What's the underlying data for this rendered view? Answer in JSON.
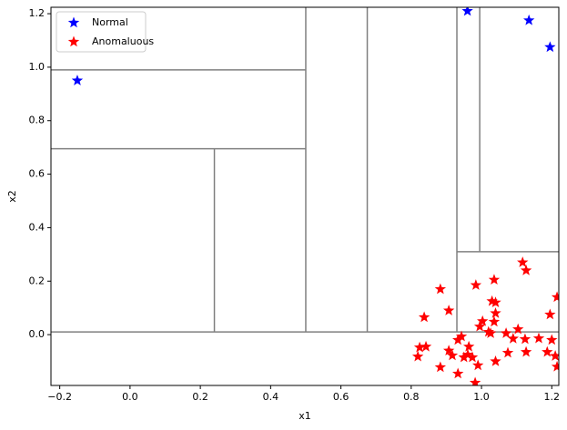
{
  "chart_data": {
    "type": "scatter",
    "xlabel": "x1",
    "ylabel": "x2",
    "xlim": [
      -0.225,
      1.22
    ],
    "ylim": [
      -0.19,
      1.224
    ],
    "xticks": [
      {
        "value": -0.2,
        "label": "−0.2"
      },
      {
        "value": 0,
        "label": "0.0"
      },
      0.2,
      0.4,
      0.6,
      0.8,
      {
        "value": 1,
        "label": "1.0"
      },
      1.2
    ],
    "yticks": [
      {
        "value": 0,
        "label": "0.0"
      },
      0.2,
      0.4,
      0.6,
      0.8,
      {
        "value": 1,
        "label": "1.0"
      },
      1.2
    ],
    "legend": "upper left",
    "partition_color": "#808080",
    "partitions": [
      {
        "x": [
          -0.225,
          1.22
        ],
        "y": [
          0.01,
          0.01
        ]
      },
      {
        "x": [
          0.5,
          0.5
        ],
        "y": [
          0.01,
          1.224
        ]
      },
      {
        "x": [
          -0.225,
          0.5
        ],
        "y": [
          0.99,
          0.99
        ]
      },
      {
        "x": [
          -0.225,
          0.5
        ],
        "y": [
          0.695,
          0.695
        ]
      },
      {
        "x": [
          0.24,
          0.24
        ],
        "y": [
          0.01,
          0.695
        ]
      },
      {
        "x": [
          0.675,
          0.675
        ],
        "y": [
          0.01,
          1.224
        ]
      },
      {
        "x": [
          0.93,
          0.93
        ],
        "y": [
          0.01,
          1.224
        ]
      },
      {
        "x": [
          0.93,
          1.22
        ],
        "y": [
          0.31,
          0.31
        ]
      },
      {
        "x": [
          0.995,
          0.995
        ],
        "y": [
          0.31,
          1.224
        ]
      }
    ],
    "series": [
      {
        "name": "Normal",
        "color": "#0000ff",
        "x": [
          -0.15,
          0.96,
          1.135,
          1.195
        ],
        "values": [
          0.95,
          1.21,
          1.175,
          1.075
        ]
      },
      {
        "name": "Anomaluous",
        "color": "#ff0000",
        "x": [
          1.215,
          1.195,
          1.117,
          1.127,
          1.036,
          1.03,
          1.04,
          1.04,
          1.036,
          1.003,
          0.995,
          0.984,
          0.883,
          0.907,
          0.837,
          1.026,
          1.02,
          1.07,
          1.104,
          1.09,
          1.124,
          1.163,
          1.2,
          1.075,
          1.127,
          1.187,
          1.21,
          1.215,
          1.04,
          0.99,
          0.961,
          0.964,
          0.933,
          0.943,
          0.907,
          0.917,
          0.95,
          0.974,
          0.824,
          0.842,
          0.819,
          0.883,
          0.933,
          0.982
        ],
        "values": [
          0.14,
          0.075,
          0.27,
          0.24,
          0.205,
          0.125,
          0.12,
          0.08,
          0.048,
          0.05,
          0.03,
          0.185,
          0.17,
          0.09,
          0.065,
          0.005,
          0.01,
          0.005,
          0.02,
          -0.015,
          -0.017,
          -0.014,
          -0.02,
          -0.068,
          -0.065,
          -0.065,
          -0.08,
          -0.12,
          -0.1,
          -0.115,
          -0.075,
          -0.045,
          -0.02,
          -0.007,
          -0.06,
          -0.078,
          -0.085,
          -0.085,
          -0.048,
          -0.045,
          -0.082,
          -0.122,
          -0.146,
          -0.18
        ]
      }
    ]
  }
}
